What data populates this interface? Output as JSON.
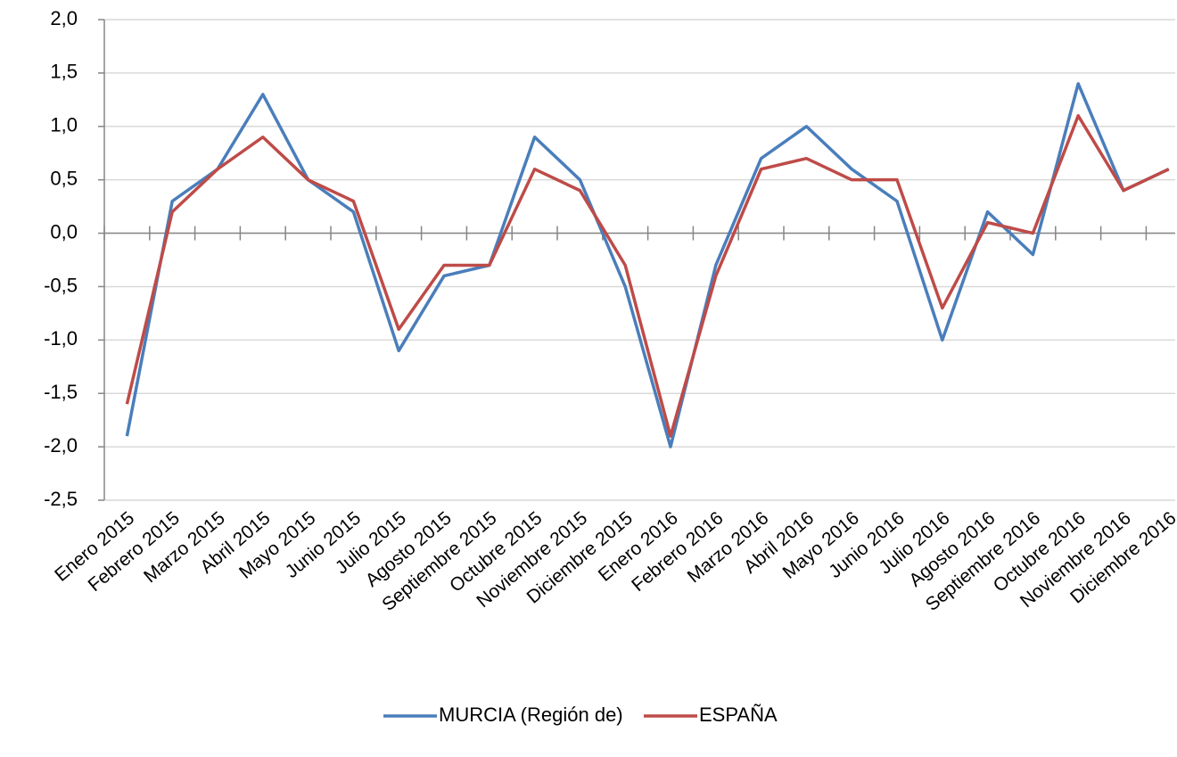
{
  "chart_data": {
    "type": "line",
    "categories": [
      "Enero 2015",
      "Febrero 2015",
      "Marzo 2015",
      "Abril 2015",
      "Mayo 2015",
      "Junio 2015",
      "Julio 2015",
      "Agosto 2015",
      "Septiembre 2015",
      "Octubre 2015",
      "Noviembre 2015",
      "Diciembre 2015",
      "Enero 2016",
      "Febrero 2016",
      "Marzo 2016",
      "Abril 2016",
      "Mayo 2016",
      "Junio 2016",
      "Julio 2016",
      "Agosto 2016",
      "Septiembre 2016",
      "Octubre 2016",
      "Noviembre 2016",
      "Diciembre 2016"
    ],
    "series": [
      {
        "name": "MURCIA (Región de)",
        "color": "#4a7ebb",
        "values": [
          -1.9,
          0.3,
          0.6,
          1.3,
          0.5,
          0.2,
          -1.1,
          -0.4,
          -0.3,
          0.9,
          0.5,
          -0.5,
          -2.0,
          -0.3,
          0.7,
          1.0,
          0.6,
          0.3,
          -1.0,
          0.2,
          -0.2,
          1.4,
          0.4,
          0.6
        ]
      },
      {
        "name": "ESPAÑA",
        "color": "#be4b48",
        "values": [
          -1.6,
          0.2,
          0.6,
          0.9,
          0.5,
          0.3,
          -0.9,
          -0.3,
          -0.3,
          0.6,
          0.4,
          -0.3,
          -1.9,
          -0.4,
          0.6,
          0.7,
          0.5,
          0.5,
          -0.7,
          0.1,
          0.0,
          1.1,
          0.4,
          0.6
        ]
      }
    ],
    "ylim": [
      -2.5,
      2.0
    ],
    "yticks": [
      {
        "value": -2.5,
        "label": "-2,5"
      },
      {
        "value": -2.0,
        "label": "-2,0"
      },
      {
        "value": -1.5,
        "label": "-1,5"
      },
      {
        "value": -1.0,
        "label": "-1,0"
      },
      {
        "value": -0.5,
        "label": "-0,5"
      },
      {
        "value": 0.0,
        "label": "0,0"
      },
      {
        "value": 0.5,
        "label": "0,5"
      },
      {
        "value": 1.0,
        "label": "1,0"
      },
      {
        "value": 1.5,
        "label": "1,5"
      },
      {
        "value": 2.0,
        "label": "2,0"
      }
    ],
    "grid": true,
    "legend": "bottom"
  }
}
